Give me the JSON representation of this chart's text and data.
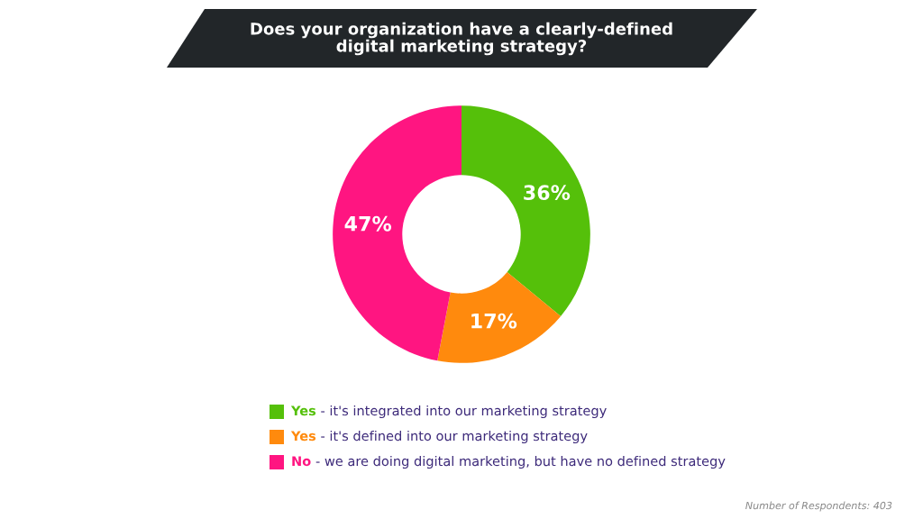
{
  "chart_data": {
    "type": "donut",
    "title": "Does your organization have a clearly-defined\ndigital marketing strategy?",
    "categories": [
      "Yes - it's integrated into our marketing strategy",
      "Yes - it's defined into our marketing strategy",
      "No - we are doing digital marketing, but have no defined strategy"
    ],
    "values": [
      36,
      17,
      47
    ],
    "colors": [
      "#55c00a",
      "#ff8a0d",
      "#ff1581"
    ],
    "value_labels": [
      "36%",
      "17%",
      "47%"
    ],
    "legend": "bottom",
    "annotations": [
      "Number of Respondents: 403"
    ]
  }
}
